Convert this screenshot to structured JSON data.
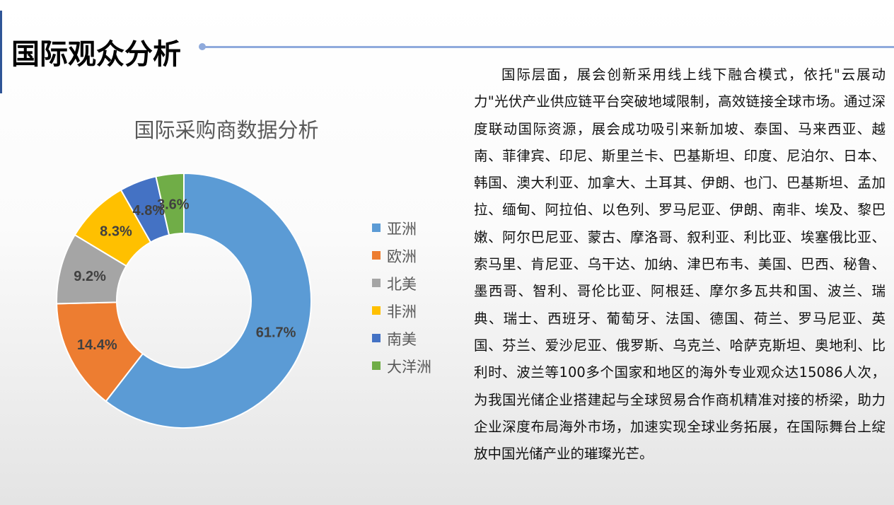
{
  "header": {
    "title": "国际观众分析"
  },
  "body_text": "国际层面，展会创新采用线上线下融合模式，依托\"云展动力\"光伏产业供应链平台突破地域限制，高效链接全球市场。通过深度联动国际资源，展会成功吸引来新加坡、泰国、马来西亚、越南、菲律宾、印尼、斯里兰卡、巴基斯坦、印度、尼泊尔、日本、韩国、澳大利亚、加拿大、土耳其、伊朗、也门、巴基斯坦、孟加拉、缅甸、阿拉伯、以色列、罗马尼亚、伊朗、南非、埃及、黎巴嫩、阿尔巴尼亚、蒙古、摩洛哥、叙利亚、利比亚、埃塞俄比亚、索马里、肯尼亚、乌干达、加纳、津巴布韦、美国、巴西、秘鲁、墨西哥、智利、哥伦比亚、阿根廷、摩尔多瓦共和国、波兰、瑞典、瑞士、西班牙、葡萄牙、法国、德国、荷兰、罗马尼亚、英国、芬兰、爱沙尼亚、俄罗斯、乌克兰、哈萨克斯坦、奥地利、比利时、波兰等100多个国家和地区的海外专业观众达15086人次，为我国光储企业搭建起与全球贸易合作商机精准对接的桥梁，助力企业深度布局海外市场，加速实现全球业务拓展，在国际舞台上绽放中国光储产业的璀璨光芒。",
  "colors": {
    "accent_line": "#8faadc",
    "left_bar": "#2f5597"
  },
  "chart_data": {
    "type": "pie",
    "variant": "donut",
    "title": "国际采购商数据分析",
    "categories": [
      "亚洲",
      "欧洲",
      "北美",
      "非洲",
      "南美",
      "大洋洲"
    ],
    "values": [
      61.7,
      14.4,
      9.2,
      8.3,
      4.8,
      3.6
    ],
    "labels": [
      "61.7%",
      "14.4%",
      "9.2%",
      "8.3%",
      "4.8%",
      "3.6%"
    ],
    "colors": [
      "#5B9BD5",
      "#ED7D31",
      "#A5A5A5",
      "#FFC000",
      "#4472C4",
      "#70AD47"
    ],
    "legend_position": "right",
    "start": "top, clockwise"
  }
}
